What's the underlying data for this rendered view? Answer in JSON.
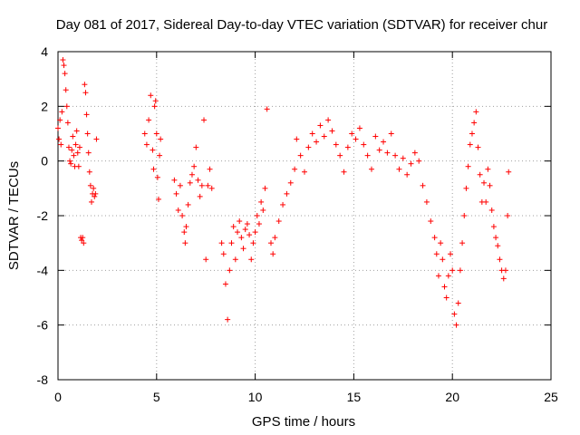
{
  "chart_data": {
    "type": "scatter",
    "title": "Day 081 of 2017, Sidereal Day-to-day VTEC variation (SDTVAR) for receiver chur",
    "xlabel": "GPS time / hours",
    "ylabel": "SDTVAR / TECUs",
    "xlim": [
      0,
      25
    ],
    "ylim": [
      -8,
      4
    ],
    "xticks": [
      0,
      5,
      10,
      15,
      20,
      25
    ],
    "yticks": [
      -8,
      -6,
      -4,
      -2,
      0,
      2,
      4
    ],
    "grid": true,
    "marker": "+",
    "color": "#ff0000",
    "series": [
      {
        "name": "SDTVAR",
        "points": [
          [
            0.0,
            1.2
          ],
          [
            0.05,
            0.8
          ],
          [
            0.1,
            1.5
          ],
          [
            0.15,
            0.6
          ],
          [
            0.2,
            1.8
          ],
          [
            0.25,
            3.7
          ],
          [
            0.3,
            3.5
          ],
          [
            0.35,
            3.2
          ],
          [
            0.4,
            2.6
          ],
          [
            0.45,
            2.0
          ],
          [
            0.5,
            1.4
          ],
          [
            0.55,
            0.5
          ],
          [
            0.6,
            0.0
          ],
          [
            0.65,
            -0.1
          ],
          [
            0.7,
            0.4
          ],
          [
            0.75,
            0.9
          ],
          [
            0.8,
            0.2
          ],
          [
            0.85,
            -0.2
          ],
          [
            0.9,
            0.6
          ],
          [
            0.95,
            1.1
          ],
          [
            1.0,
            0.3
          ],
          [
            1.05,
            -0.2
          ],
          [
            1.1,
            0.5
          ],
          [
            1.15,
            -2.8
          ],
          [
            1.2,
            -2.9
          ],
          [
            1.25,
            -2.8
          ],
          [
            1.3,
            -3.0
          ],
          [
            1.35,
            2.8
          ],
          [
            1.4,
            2.5
          ],
          [
            1.45,
            1.7
          ],
          [
            1.5,
            1.0
          ],
          [
            1.55,
            0.3
          ],
          [
            1.6,
            -0.4
          ],
          [
            1.65,
            -0.9
          ],
          [
            1.7,
            -1.5
          ],
          [
            1.75,
            -1.2
          ],
          [
            1.8,
            -1.0
          ],
          [
            1.85,
            -1.3
          ],
          [
            1.9,
            -1.2
          ],
          [
            1.95,
            0.8
          ],
          [
            4.4,
            1.0
          ],
          [
            4.5,
            0.6
          ],
          [
            4.6,
            1.5
          ],
          [
            4.7,
            2.4
          ],
          [
            4.8,
            0.4
          ],
          [
            4.85,
            -0.3
          ],
          [
            4.9,
            2.0
          ],
          [
            4.95,
            2.2
          ],
          [
            5.0,
            1.0
          ],
          [
            5.05,
            -0.6
          ],
          [
            5.1,
            -1.4
          ],
          [
            5.15,
            0.2
          ],
          [
            5.2,
            0.8
          ],
          [
            5.9,
            -0.7
          ],
          [
            6.0,
            -1.2
          ],
          [
            6.1,
            -1.8
          ],
          [
            6.2,
            -0.9
          ],
          [
            6.3,
            -2.0
          ],
          [
            6.4,
            -2.6
          ],
          [
            6.45,
            -3.0
          ],
          [
            6.5,
            -2.4
          ],
          [
            6.6,
            -1.6
          ],
          [
            6.7,
            -0.8
          ],
          [
            6.8,
            -0.5
          ],
          [
            6.9,
            -0.2
          ],
          [
            7.0,
            0.5
          ],
          [
            7.1,
            -0.7
          ],
          [
            7.2,
            -1.3
          ],
          [
            7.3,
            -0.9
          ],
          [
            7.4,
            1.5
          ],
          [
            7.5,
            -3.6
          ],
          [
            7.6,
            -0.9
          ],
          [
            7.7,
            -0.3
          ],
          [
            7.8,
            -1.0
          ],
          [
            8.3,
            -3.0
          ],
          [
            8.4,
            -3.4
          ],
          [
            8.5,
            -4.5
          ],
          [
            8.6,
            -5.8
          ],
          [
            8.7,
            -4.0
          ],
          [
            8.8,
            -3.0
          ],
          [
            8.9,
            -2.4
          ],
          [
            9.0,
            -3.6
          ],
          [
            9.1,
            -2.6
          ],
          [
            9.2,
            -2.2
          ],
          [
            9.3,
            -2.8
          ],
          [
            9.4,
            -3.2
          ],
          [
            9.5,
            -2.5
          ],
          [
            9.6,
            -2.3
          ],
          [
            9.7,
            -2.7
          ],
          [
            9.8,
            -3.6
          ],
          [
            9.9,
            -3.0
          ],
          [
            10.0,
            -2.6
          ],
          [
            10.1,
            -2.0
          ],
          [
            10.2,
            -2.3
          ],
          [
            10.3,
            -1.5
          ],
          [
            10.4,
            -1.8
          ],
          [
            10.5,
            -1.0
          ],
          [
            10.6,
            1.9
          ],
          [
            10.8,
            -3.0
          ],
          [
            10.9,
            -3.4
          ],
          [
            11.0,
            -2.8
          ],
          [
            11.2,
            -2.2
          ],
          [
            11.4,
            -1.6
          ],
          [
            11.6,
            -1.2
          ],
          [
            11.8,
            -0.8
          ],
          [
            12.0,
            -0.3
          ],
          [
            12.1,
            0.8
          ],
          [
            12.3,
            0.2
          ],
          [
            12.5,
            -0.4
          ],
          [
            12.7,
            0.5
          ],
          [
            12.9,
            1.0
          ],
          [
            13.1,
            0.7
          ],
          [
            13.3,
            1.3
          ],
          [
            13.5,
            0.9
          ],
          [
            13.7,
            1.5
          ],
          [
            13.9,
            1.1
          ],
          [
            14.1,
            0.6
          ],
          [
            14.3,
            0.2
          ],
          [
            14.5,
            -0.4
          ],
          [
            14.7,
            0.5
          ],
          [
            14.9,
            1.0
          ],
          [
            15.1,
            0.8
          ],
          [
            15.3,
            1.2
          ],
          [
            15.5,
            0.6
          ],
          [
            15.7,
            0.2
          ],
          [
            15.9,
            -0.3
          ],
          [
            16.1,
            0.9
          ],
          [
            16.3,
            0.4
          ],
          [
            16.5,
            0.7
          ],
          [
            16.7,
            0.3
          ],
          [
            16.9,
            1.0
          ],
          [
            17.1,
            0.2
          ],
          [
            17.3,
            -0.3
          ],
          [
            17.5,
            0.1
          ],
          [
            17.7,
            -0.5
          ],
          [
            17.9,
            -0.1
          ],
          [
            18.1,
            0.3
          ],
          [
            18.3,
            0.0
          ],
          [
            18.5,
            -0.9
          ],
          [
            18.7,
            -1.5
          ],
          [
            18.9,
            -2.2
          ],
          [
            19.1,
            -2.8
          ],
          [
            19.2,
            -3.4
          ],
          [
            19.3,
            -4.2
          ],
          [
            19.4,
            -3.0
          ],
          [
            19.5,
            -3.6
          ],
          [
            19.6,
            -4.6
          ],
          [
            19.7,
            -5.0
          ],
          [
            19.8,
            -4.2
          ],
          [
            19.9,
            -3.4
          ],
          [
            20.0,
            -4.0
          ],
          [
            20.1,
            -5.6
          ],
          [
            20.2,
            -6.0
          ],
          [
            20.3,
            -5.2
          ],
          [
            20.4,
            -4.0
          ],
          [
            20.5,
            -3.0
          ],
          [
            20.6,
            -2.0
          ],
          [
            20.7,
            -1.0
          ],
          [
            20.8,
            -0.2
          ],
          [
            20.9,
            0.6
          ],
          [
            21.0,
            1.0
          ],
          [
            21.1,
            1.4
          ],
          [
            21.2,
            1.8
          ],
          [
            21.3,
            0.5
          ],
          [
            21.4,
            -0.5
          ],
          [
            21.5,
            -1.5
          ],
          [
            21.6,
            -0.8
          ],
          [
            21.7,
            -1.5
          ],
          [
            21.8,
            -0.3
          ],
          [
            21.9,
            -0.9
          ],
          [
            22.0,
            -1.8
          ],
          [
            22.1,
            -2.4
          ],
          [
            22.2,
            -2.8
          ],
          [
            22.3,
            -3.1
          ],
          [
            22.4,
            -3.6
          ],
          [
            22.5,
            -4.0
          ],
          [
            22.6,
            -4.3
          ],
          [
            22.7,
            -4.0
          ],
          [
            22.8,
            -2.0
          ],
          [
            22.85,
            -0.4
          ]
        ]
      }
    ]
  }
}
